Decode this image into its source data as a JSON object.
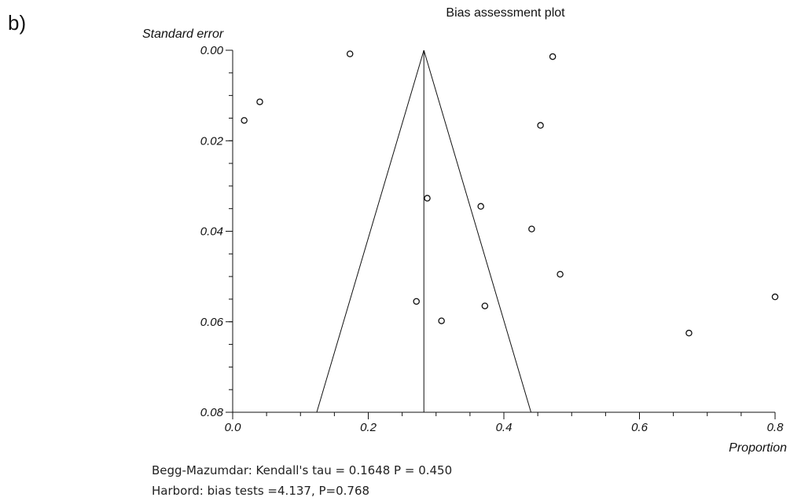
{
  "panel_label": "b)",
  "notes": [
    "Begg-Mazumdar: Kendall's tau = 0.1648 P = 0.450",
    "Harbord: bias tests =4.137, P=0.768"
  ],
  "chart_data": {
    "type": "scatter",
    "title": "Bias assessment plot",
    "xlabel": "Proportion",
    "ylabel": "Standard error",
    "xlim": [
      0,
      0.8
    ],
    "ylim": [
      0,
      0.08
    ],
    "y_inverted": true,
    "x_ticks": [
      0.0,
      0.2,
      0.4,
      0.6,
      0.8
    ],
    "x_tick_labels": [
      "0.0",
      "0.2",
      "0.4",
      "0.6",
      "0.8"
    ],
    "y_ticks": [
      0.0,
      0.02,
      0.04,
      0.06,
      0.08
    ],
    "y_tick_labels": [
      "0.00",
      "0.02",
      "0.04",
      "0.06",
      "0.08"
    ],
    "pooled_estimate": 0.282,
    "funnel_bottom": [
      0.124,
      0.44
    ],
    "points": [
      {
        "x": 0.173,
        "y": 0.0008
      },
      {
        "x": 0.472,
        "y": 0.0014
      },
      {
        "x": 0.04,
        "y": 0.0114
      },
      {
        "x": 0.017,
        "y": 0.0155
      },
      {
        "x": 0.454,
        "y": 0.0166
      },
      {
        "x": 0.287,
        "y": 0.0327
      },
      {
        "x": 0.366,
        "y": 0.0345
      },
      {
        "x": 0.441,
        "y": 0.0395
      },
      {
        "x": 0.483,
        "y": 0.0495
      },
      {
        "x": 0.8,
        "y": 0.0545
      },
      {
        "x": 0.271,
        "y": 0.0555
      },
      {
        "x": 0.372,
        "y": 0.0565
      },
      {
        "x": 0.308,
        "y": 0.0598
      },
      {
        "x": 0.673,
        "y": 0.0625
      }
    ]
  }
}
